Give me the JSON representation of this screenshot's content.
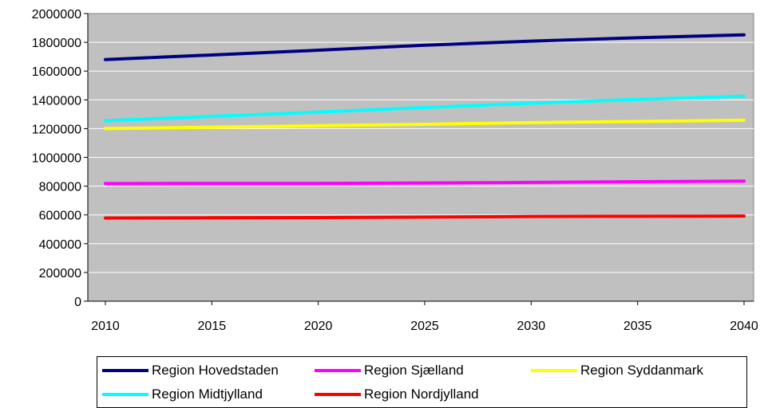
{
  "chart_data": {
    "type": "line",
    "x": [
      2010,
      2015,
      2020,
      2025,
      2030,
      2035,
      2040
    ],
    "xlim": [
      2010,
      2040
    ],
    "ylim": [
      0,
      2000000
    ],
    "yticks": [
      0,
      200000,
      400000,
      600000,
      800000,
      1000000,
      1200000,
      1400000,
      1600000,
      1800000,
      2000000
    ],
    "ytick_labels": [
      "0",
      "200000",
      "400000",
      "600000",
      "800000",
      "1000000",
      "1200000",
      "1400000",
      "1600000",
      "1800000",
      "2000000"
    ],
    "xtick_labels": [
      "2010",
      "2015",
      "2020",
      "2025",
      "2030",
      "2035",
      "2040"
    ],
    "grid": true,
    "plot_background": "#c0c0c0",
    "legend_position": "bottom",
    "series": [
      {
        "name": "Region Hovedstaden",
        "color": "#000080",
        "values": [
          1680000,
          1712000,
          1745000,
          1780000,
          1808000,
          1832000,
          1852000
        ]
      },
      {
        "name": "Region Sjælland",
        "color": "#ff00ff",
        "values": [
          818000,
          819000,
          819000,
          822000,
          826000,
          831000,
          835000
        ]
      },
      {
        "name": "Region Syddanmark",
        "color": "#ffff00",
        "values": [
          1200000,
          1210000,
          1220000,
          1230000,
          1242000,
          1250000,
          1258000
        ]
      },
      {
        "name": "Region Midtjylland",
        "color": "#00ffff",
        "values": [
          1255000,
          1285000,
          1315000,
          1347000,
          1377000,
          1403000,
          1425000
        ]
      },
      {
        "name": "Region Nordjylland",
        "color": "#ff0000",
        "values": [
          578000,
          580000,
          582000,
          585000,
          589000,
          591000,
          592000
        ]
      }
    ]
  }
}
